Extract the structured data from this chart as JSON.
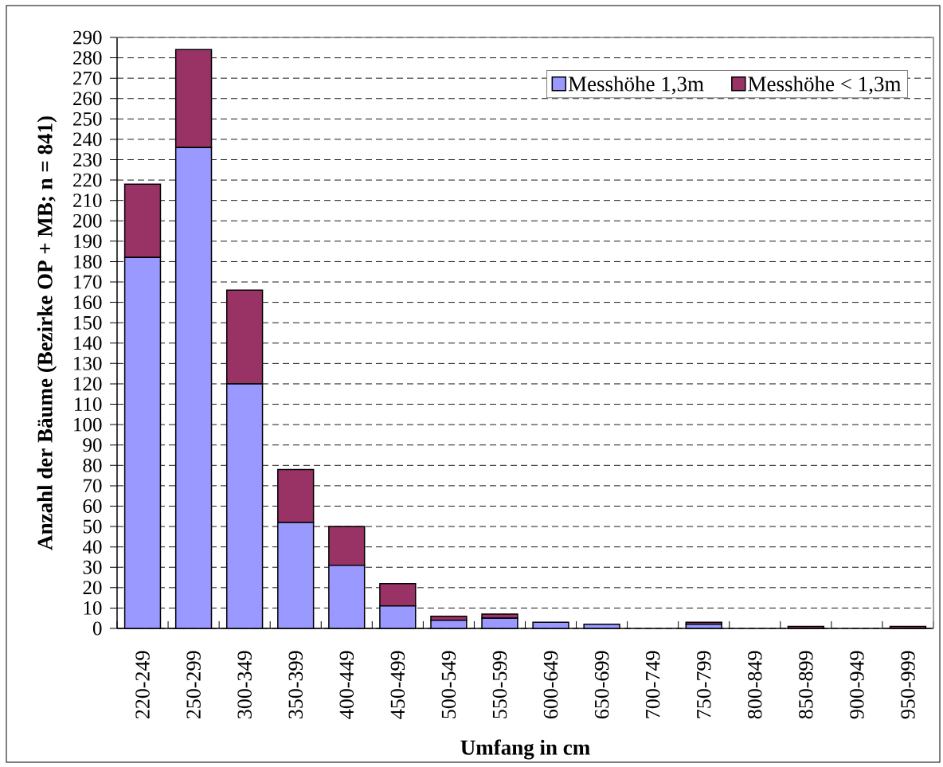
{
  "chart_data": {
    "type": "bar",
    "stacked": true,
    "xlabel": "Umfang in cm",
    "ylabel": "Anzahl der Bäume (Bezirke OP + MB; n = 841)",
    "categories": [
      "220-249",
      "250-299",
      "300-349",
      "350-399",
      "400-449",
      "450-499",
      "500-549",
      "550-599",
      "600-649",
      "650-699",
      "700-749",
      "750-799",
      "800-849",
      "850-899",
      "900-949",
      "950-999"
    ],
    "series": [
      {
        "name": "Messhöhe 1,3m",
        "color": "#9999ff",
        "values": [
          182,
          236,
          120,
          52,
          31,
          11,
          4,
          5,
          3,
          2,
          0,
          2,
          0,
          0,
          0,
          0
        ]
      },
      {
        "name": "Messhöhe < 1,3m",
        "color": "#993366",
        "values": [
          36,
          48,
          46,
          26,
          19,
          11,
          2,
          2,
          0,
          0,
          0,
          1,
          0,
          1,
          0,
          1
        ]
      }
    ],
    "ylim": [
      0,
      290
    ],
    "yticks": [
      0,
      10,
      20,
      30,
      40,
      50,
      60,
      70,
      80,
      90,
      100,
      110,
      120,
      130,
      140,
      150,
      160,
      170,
      180,
      190,
      200,
      210,
      220,
      230,
      240,
      250,
      260,
      270,
      280,
      290
    ],
    "grid": "y",
    "legend": "top right"
  }
}
